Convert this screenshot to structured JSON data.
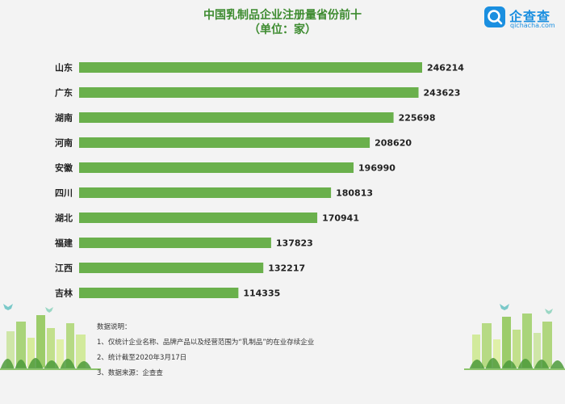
{
  "title_line1": "中国乳制品企业注册量省份前十",
  "title_line2": "（单位：家）",
  "logo": {
    "name": "企查查",
    "domain": "qichacha.com",
    "badge_icon": "qichacha-logo-icon",
    "color": "#1a8fe0"
  },
  "chart_data": {
    "type": "bar",
    "orientation": "horizontal",
    "categories": [
      "山东",
      "广东",
      "湖南",
      "河南",
      "安徽",
      "四川",
      "湖北",
      "福建",
      "江西",
      "吉林"
    ],
    "values": [
      246214,
      243623,
      225698,
      208620,
      196990,
      180813,
      170941,
      137823,
      132217,
      114335
    ],
    "bar_color": "#6ab04c",
    "grid": false,
    "legend": "none"
  },
  "notes": {
    "heading": "数据说明：",
    "items": [
      "1、仅统计企业名称、品牌产品以及经营范围为“乳制品”的在业存续企业",
      "2、统计截至2020年3月17日",
      "3、数据来源：企查查"
    ]
  }
}
